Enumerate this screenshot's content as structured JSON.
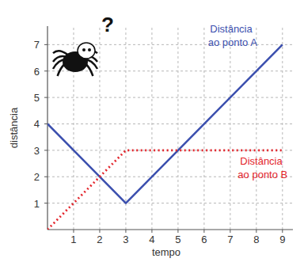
{
  "chart_data": {
    "type": "line",
    "x_label": "tempo",
    "y_label": "distância",
    "annotations": [
      "?"
    ],
    "x": [
      0,
      3,
      9
    ],
    "series": [
      {
        "name": "Distância ao ponto A",
        "color": "#3b4fae",
        "line_style": "solid",
        "values": [
          4,
          1,
          7
        ]
      },
      {
        "name": "Distância ao ponto B",
        "color": "#e3242b",
        "line_style": "dotted",
        "values": [
          0,
          3,
          3
        ]
      }
    ],
    "xlim": [
      0,
      9.4
    ],
    "ylim": [
      0,
      7.7
    ],
    "xticks": [
      1,
      2,
      3,
      4,
      5,
      6,
      7,
      8,
      9
    ],
    "yticks": [
      1,
      2,
      3,
      4,
      5,
      6,
      7
    ],
    "grid": true
  }
}
